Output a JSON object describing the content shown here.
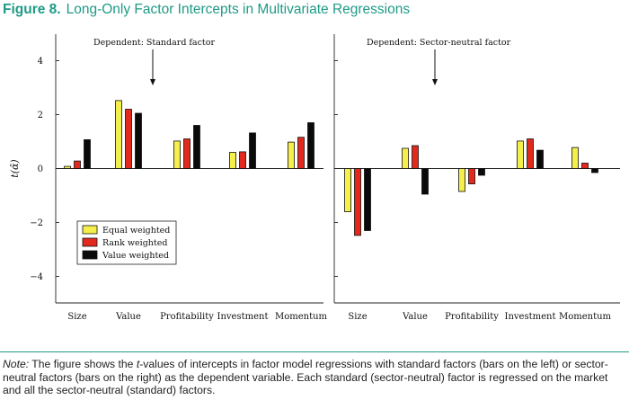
{
  "figure": {
    "number_label": "Figure 8.",
    "title": "Long-Only Factor Intercepts in Multivariate Regressions"
  },
  "note": {
    "lead": "Note:",
    "text_pre": " The figure shows the ",
    "t_italic": "t",
    "text_post": "-values of intercepts in factor model regressions with standard factors (bars on the left) or sector-neutral factors (bars on the right) as the dependent variable. Each standard (sector-neutral) factor is regressed on the market and all the sector-neutral (standard) factors."
  },
  "colors": {
    "equal": "#f4ef4a",
    "rank": "#e3291c",
    "value": "#0a0a0a",
    "accent": "#1f9a86"
  },
  "chart_data": [
    {
      "type": "bar",
      "title": "Dependent: Standard factor",
      "ylabel": "t(α̂)",
      "ylim": [
        -4.6,
        4.6
      ],
      "yticks": [
        4,
        2,
        0,
        -2,
        -4
      ],
      "ytick_labels": [
        "4",
        "2",
        "0",
        "−2",
        "−4"
      ],
      "categories": [
        "Size",
        "Value",
        "Profitability",
        "Investment",
        "Momentum"
      ],
      "series": [
        {
          "name": "Equal weighted",
          "color_key": "equal",
          "values": [
            0.08,
            2.52,
            1.02,
            0.6,
            0.98
          ]
        },
        {
          "name": "Rank weighted",
          "color_key": "rank",
          "values": [
            0.28,
            2.2,
            1.1,
            0.62,
            1.16
          ]
        },
        {
          "name": "Value weighted",
          "color_key": "value",
          "values": [
            1.07,
            2.05,
            1.6,
            1.32,
            1.7
          ]
        }
      ],
      "legend_position": "bottom-left"
    },
    {
      "type": "bar",
      "title": "Dependent: Sector-neutral factor",
      "ylim": [
        -4.6,
        4.6
      ],
      "categories": [
        "Size",
        "Value",
        "Profitability",
        "Investment",
        "Momentum"
      ],
      "series": [
        {
          "name": "Equal weighted",
          "color_key": "equal",
          "values": [
            -1.6,
            0.75,
            -0.85,
            1.02,
            0.78
          ]
        },
        {
          "name": "Rank weighted",
          "color_key": "rank",
          "values": [
            -2.48,
            0.85,
            -0.57,
            1.1,
            0.2
          ]
        },
        {
          "name": "Value weighted",
          "color_key": "value",
          "values": [
            -2.3,
            -0.95,
            -0.25,
            0.68,
            -0.15
          ]
        }
      ]
    }
  ]
}
